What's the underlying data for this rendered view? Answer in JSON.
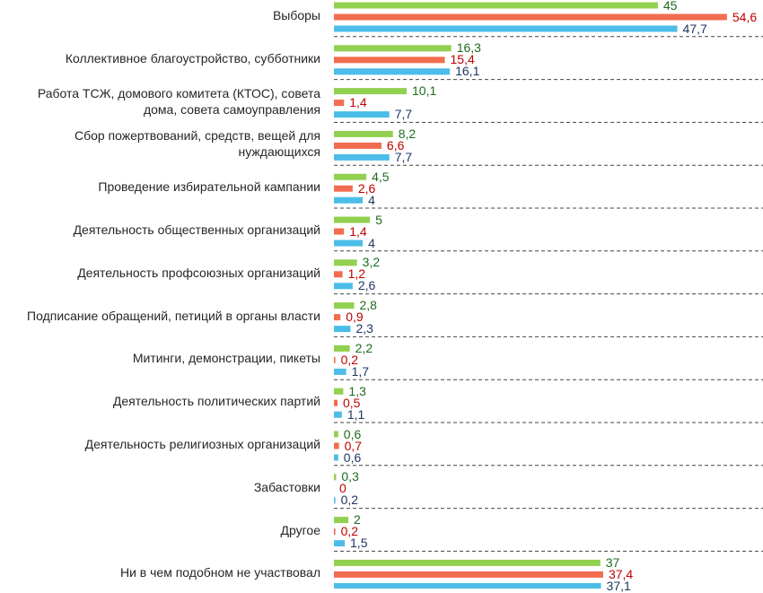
{
  "chart_data": {
    "type": "bar",
    "orientation": "horizontal",
    "title": "",
    "xlabel": "",
    "ylabel": "",
    "xlim": [
      0,
      55
    ],
    "grid": false,
    "legend": "none",
    "categories": [
      "Выборы",
      "Коллективное благоустройство, субботники",
      "Работа ТСЖ, домового комитета (КТОС), совета дома, совета самоуправления",
      "Сбор пожертвований, средств, вещей для нуждающихся",
      "Проведение избирательной кампании",
      "Деятельность общественных организаций",
      "Деятельность профсоюзных организаций",
      "Подписание обращений, петиций в органы власти",
      "Митинги, демонстрации, пикеты",
      "Деятельность политических партий",
      "Деятельность религиозных организаций",
      "Забастовки",
      "Другое",
      "Ни в чем подобном не участвовал"
    ],
    "category_lines": [
      [
        "Выборы"
      ],
      [
        "Коллективное благоустройство, субботники"
      ],
      [
        "Работа ТСЖ, домового комитета (КТОС), совета",
        "дома, совета самоуправления"
      ],
      [
        "Сбор пожертвований, средств, вещей для",
        "нуждающихся"
      ],
      [
        "Проведение избирательной кампании"
      ],
      [
        "Деятельность общественных организаций"
      ],
      [
        "Деятельность профсоюзных организаций"
      ],
      [
        "Подписание обращений, петиций в органы власти"
      ],
      [
        "Митинги, демонстрации, пикеты"
      ],
      [
        "Деятельность политических партий"
      ],
      [
        "Деятельность религиозных организаций"
      ],
      [
        "Забастовки"
      ],
      [
        "Другое"
      ],
      [
        "Ни в чем подобном не участвовал"
      ]
    ],
    "series": [
      {
        "color": "#92d050",
        "label_color": "#1e6b1e",
        "values": [
          45,
          16.3,
          10.1,
          8.2,
          4.5,
          5,
          3.2,
          2.8,
          2.2,
          1.3,
          0.6,
          0.3,
          2,
          37
        ],
        "labels": [
          "45",
          "16,3",
          "10,1",
          "8,2",
          "4,5",
          "5",
          "3,2",
          "2,8",
          "2,2",
          "1,3",
          "0,6",
          "0,3",
          "2",
          "37"
        ]
      },
      {
        "color": "#f26c4f",
        "label_color": "#c00000",
        "values": [
          54.6,
          15.4,
          1.4,
          6.6,
          2.6,
          1.4,
          1.2,
          0.9,
          0.2,
          0.5,
          0.7,
          0,
          0.2,
          37.4
        ],
        "labels": [
          "54,6",
          "15,4",
          "1,4",
          "6,6",
          "2,6",
          "1,4",
          "1,2",
          "0,9",
          "0,2",
          "0,5",
          "0,7",
          "0",
          "0,2",
          "37,4"
        ]
      },
      {
        "color": "#4bbde8",
        "label_color": "#1f3864",
        "values": [
          47.7,
          16.1,
          7.7,
          7.7,
          4,
          4,
          2.6,
          2.3,
          1.7,
          1.1,
          0.6,
          0.2,
          1.5,
          37.1
        ],
        "labels": [
          "47,7",
          "16,1",
          "7,7",
          "7,7",
          "4",
          "4",
          "2,6",
          "2,3",
          "1,7",
          "1,1",
          "0,6",
          "0,2",
          "1,5",
          "37,1"
        ]
      }
    ]
  }
}
